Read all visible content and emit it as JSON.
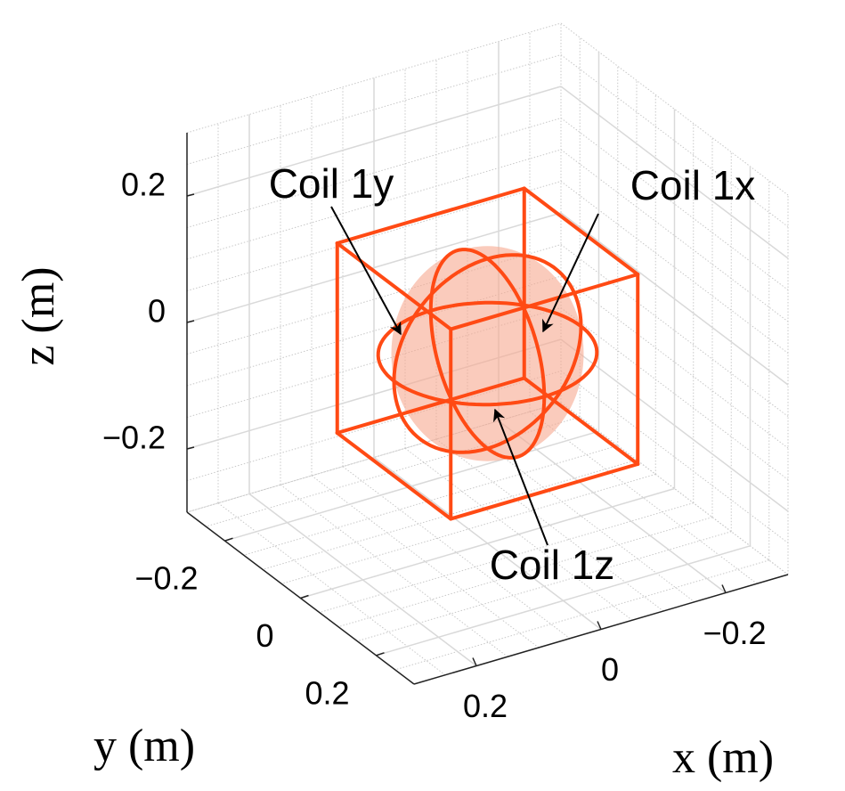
{
  "chart_data": {
    "type": "coil3d",
    "xlabel": "x (m)",
    "ylabel": "y (m)",
    "zlabel": "z (m)",
    "xlim": [
      -0.3,
      0.3
    ],
    "ylim": [
      -0.3,
      0.3
    ],
    "zlim": [
      -0.3,
      0.3
    ],
    "xticks": [
      {
        "value": -0.2,
        "label": "−0.2"
      },
      0,
      0.2
    ],
    "yticks": [
      {
        "value": -0.2,
        "label": "−0.2"
      },
      0,
      0.2
    ],
    "zticks": [
      {
        "value": -0.2,
        "label": "−0.2"
      },
      0,
      0.2
    ],
    "grid": true,
    "minor_grid_step": 0.05,
    "color": "#ff4a14",
    "fill_color": "#f7a890",
    "frame_half_size": 0.15,
    "coils": [
      {
        "name": "Coil 1y",
        "normal": "y",
        "radius": 0.15
      },
      {
        "name": "Coil 1x",
        "normal": "x",
        "radius": 0.15
      },
      {
        "name": "Coil 1z",
        "normal": "z",
        "radius": 0.15
      }
    ]
  }
}
